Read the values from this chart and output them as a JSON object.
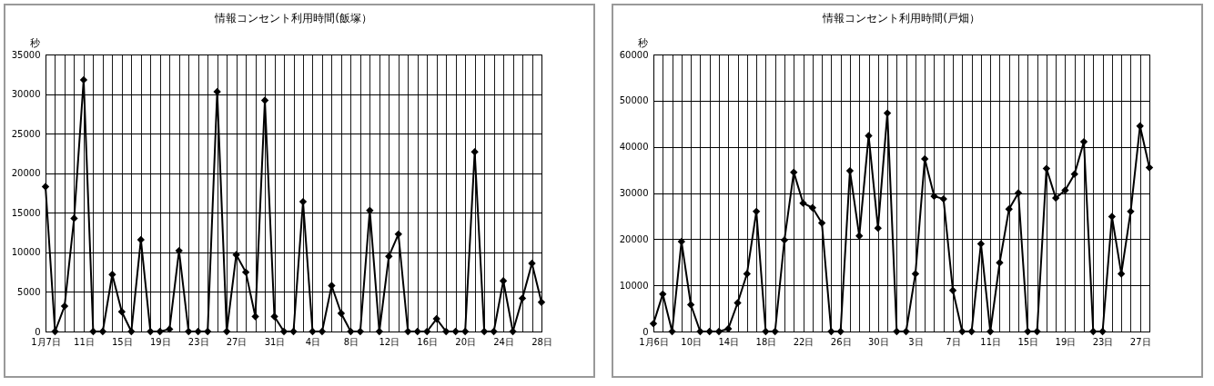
{
  "chart_data": [
    {
      "type": "line",
      "title": "情報コンセント利用時間(飯塚）",
      "ylabel": "秒",
      "categories": [
        "1月7日",
        null,
        null,
        null,
        "11日",
        null,
        null,
        null,
        "15日",
        null,
        null,
        null,
        "19日",
        null,
        null,
        null,
        "23日",
        null,
        null,
        null,
        "27日",
        null,
        null,
        null,
        "31日",
        null,
        null,
        null,
        "4日",
        null,
        null,
        null,
        "8日",
        null,
        null,
        null,
        "12日",
        null,
        null,
        null,
        "16日",
        null,
        null,
        null,
        "20日",
        null,
        null,
        null,
        "24日",
        null,
        null,
        null,
        "28日"
      ],
      "series": [
        {
          "color": "#000000",
          "values": [
            18300,
            0,
            3200,
            14300,
            31800,
            0,
            0,
            7200,
            2500,
            0,
            11600,
            0,
            0,
            300,
            10200,
            0,
            0,
            0,
            30300,
            0,
            9700,
            7500,
            1900,
            29200,
            1900,
            0,
            0,
            16400,
            0,
            0,
            5800,
            2300,
            0,
            0,
            15300,
            0,
            9500,
            12300,
            0,
            0,
            0,
            1600,
            0,
            0,
            0,
            22700,
            0,
            0,
            6400,
            0,
            4200,
            8600,
            3700
          ]
        }
      ],
      "ylim": [
        0,
        35000
      ],
      "yticks": [
        0,
        5000,
        10000,
        15000,
        20000,
        25000,
        30000,
        35000
      ],
      "grid": true,
      "marker": "diamond"
    },
    {
      "type": "line",
      "title": "情報コンセント利用時間(戸畑）",
      "ylabel": "秒",
      "categories": [
        "1月6日",
        null,
        null,
        null,
        "10日",
        null,
        null,
        null,
        "14日",
        null,
        null,
        null,
        "18日",
        null,
        null,
        null,
        "22日",
        null,
        null,
        null,
        "26日",
        null,
        null,
        null,
        "30日",
        null,
        null,
        null,
        "3日",
        null,
        null,
        null,
        "7日",
        null,
        null,
        null,
        "11日",
        null,
        null,
        null,
        "15日",
        null,
        null,
        null,
        "19日",
        null,
        null,
        null,
        "23日",
        null,
        null,
        null,
        "27日",
        null
      ],
      "series": [
        {
          "color": "#000000",
          "values": [
            1700,
            8100,
            0,
            19500,
            5800,
            0,
            0,
            0,
            600,
            6200,
            12500,
            26000,
            0,
            0,
            19800,
            34500,
            27800,
            26800,
            23500,
            0,
            0,
            34800,
            20700,
            42400,
            22400,
            47300,
            0,
            0,
            12500,
            37400,
            29300,
            28700,
            8900,
            0,
            0,
            19000,
            0,
            14900,
            26500,
            30000,
            0,
            0,
            35300,
            28900,
            30600,
            34100,
            41100,
            0,
            0,
            24900,
            12500,
            26000,
            44500,
            35500
          ]
        }
      ],
      "ylim": [
        0,
        60000
      ],
      "yticks": [
        0,
        10000,
        20000,
        30000,
        40000,
        50000,
        60000
      ],
      "grid": true,
      "marker": "diamond"
    }
  ]
}
